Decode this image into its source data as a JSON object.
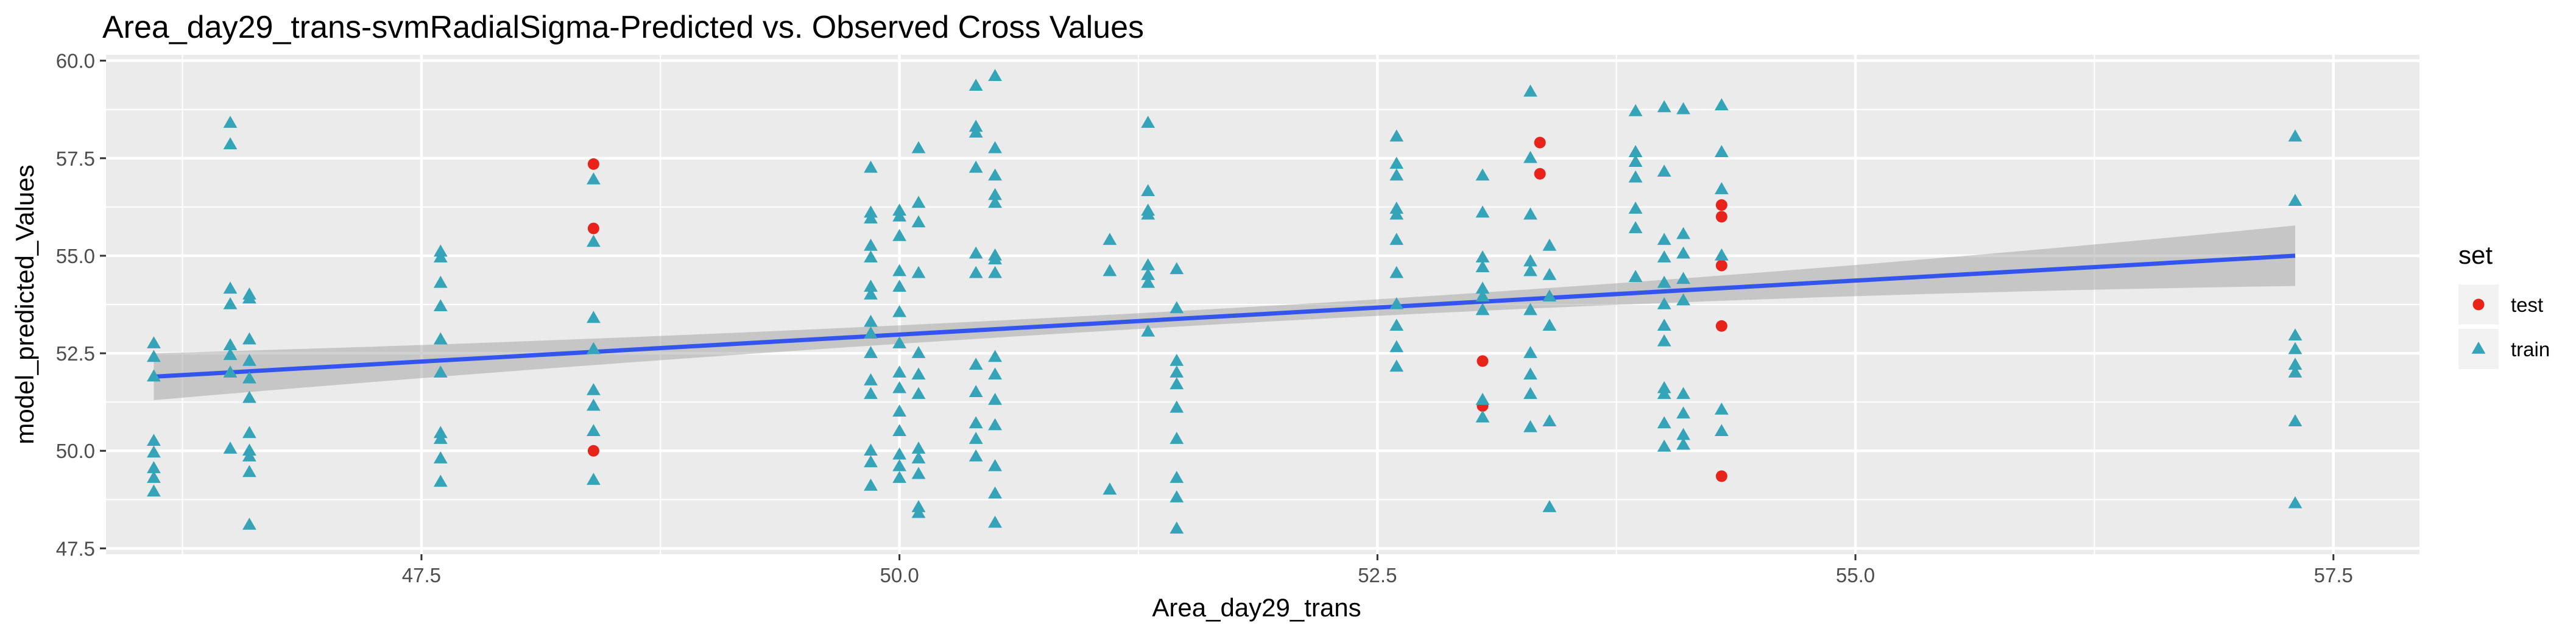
{
  "chart_data": {
    "type": "scatter",
    "title": "Area_day29_trans-svmRadialSigma-Predicted vs. Observed Cross Values",
    "xlabel": "Area_day29_trans",
    "ylabel": "model_predicted_Values",
    "xlim": [
      45.85,
      57.95
    ],
    "ylim": [
      47.35,
      60.15
    ],
    "x_ticks": [
      47.5,
      50.0,
      52.5,
      55.0,
      57.5
    ],
    "x_tick_labels": [
      "47.5",
      "50.0",
      "52.5",
      "55.0",
      "57.5"
    ],
    "y_ticks": [
      47.5,
      50.0,
      52.5,
      55.0,
      57.5,
      60.0
    ],
    "y_tick_labels": [
      "47.5",
      "50.0",
      "52.5",
      "55.0",
      "57.5",
      "60.0"
    ],
    "grid": true,
    "legend": {
      "title": "set",
      "placement": "right",
      "entries": [
        "test",
        "train"
      ]
    },
    "colors": {
      "panel": "#ebebeb",
      "grid": "#ffffff",
      "test": "#f8766d",
      "test_dot": "#e8241a",
      "train": "#35a3b8",
      "fit_line": "#3355ee",
      "ribbon": "#999999"
    },
    "fit": {
      "x": [
        46.1,
        57.3
      ],
      "y": [
        51.9,
        55.0
      ],
      "ci_upper": [
        52.45,
        55.8
      ],
      "ci_lower": [
        51.25,
        54.25
      ]
    },
    "series": [
      {
        "name": "test",
        "shape": "circle",
        "points": [
          [
            48.4,
            57.35
          ],
          [
            48.4,
            55.7
          ],
          [
            48.4,
            50.0
          ],
          [
            53.05,
            52.3
          ],
          [
            53.05,
            51.15
          ],
          [
            53.35,
            57.9
          ],
          [
            53.35,
            57.1
          ],
          [
            54.3,
            56.3
          ],
          [
            54.3,
            56.0
          ],
          [
            54.3,
            54.75
          ],
          [
            54.3,
            53.2
          ],
          [
            54.3,
            49.35
          ]
        ]
      },
      {
        "name": "train",
        "shape": "triangle",
        "points": [
          [
            46.1,
            52.75
          ],
          [
            46.1,
            52.4
          ],
          [
            46.1,
            51.9
          ],
          [
            46.1,
            50.25
          ],
          [
            46.1,
            49.95
          ],
          [
            46.1,
            49.55
          ],
          [
            46.1,
            49.3
          ],
          [
            46.1,
            48.95
          ],
          [
            46.5,
            58.4
          ],
          [
            46.5,
            57.85
          ],
          [
            46.5,
            54.15
          ],
          [
            46.5,
            53.75
          ],
          [
            46.5,
            52.7
          ],
          [
            46.5,
            52.45
          ],
          [
            46.5,
            52.0
          ],
          [
            46.5,
            50.05
          ],
          [
            46.6,
            54.0
          ],
          [
            46.6,
            53.9
          ],
          [
            46.6,
            52.85
          ],
          [
            46.6,
            52.3
          ],
          [
            46.6,
            51.85
          ],
          [
            46.6,
            51.35
          ],
          [
            46.6,
            50.45
          ],
          [
            46.6,
            50.0
          ],
          [
            46.6,
            49.85
          ],
          [
            46.6,
            49.45
          ],
          [
            46.6,
            48.1
          ],
          [
            47.6,
            55.1
          ],
          [
            47.6,
            54.95
          ],
          [
            47.6,
            54.3
          ],
          [
            47.6,
            53.7
          ],
          [
            47.6,
            52.85
          ],
          [
            47.6,
            52.0
          ],
          [
            47.6,
            50.45
          ],
          [
            47.6,
            50.3
          ],
          [
            47.6,
            49.8
          ],
          [
            47.6,
            49.2
          ],
          [
            48.4,
            56.95
          ],
          [
            48.4,
            55.35
          ],
          [
            48.4,
            53.4
          ],
          [
            48.4,
            52.6
          ],
          [
            48.4,
            51.55
          ],
          [
            48.4,
            51.15
          ],
          [
            48.4,
            50.5
          ],
          [
            48.4,
            49.25
          ],
          [
            49.85,
            57.25
          ],
          [
            49.85,
            56.1
          ],
          [
            49.85,
            55.95
          ],
          [
            49.85,
            55.25
          ],
          [
            49.85,
            54.95
          ],
          [
            49.85,
            54.2
          ],
          [
            49.85,
            54.0
          ],
          [
            49.85,
            53.3
          ],
          [
            49.85,
            53.0
          ],
          [
            49.85,
            52.5
          ],
          [
            49.85,
            51.8
          ],
          [
            49.85,
            51.45
          ],
          [
            49.85,
            50.0
          ],
          [
            49.85,
            49.7
          ],
          [
            49.85,
            49.1
          ],
          [
            50.0,
            56.15
          ],
          [
            50.0,
            56.0
          ],
          [
            50.0,
            55.5
          ],
          [
            50.0,
            54.6
          ],
          [
            50.0,
            54.2
          ],
          [
            50.0,
            53.55
          ],
          [
            50.0,
            52.75
          ],
          [
            50.0,
            52.0
          ],
          [
            50.0,
            51.6
          ],
          [
            50.0,
            51.0
          ],
          [
            50.0,
            50.5
          ],
          [
            50.0,
            49.9
          ],
          [
            50.0,
            49.6
          ],
          [
            50.0,
            49.3
          ],
          [
            50.1,
            57.75
          ],
          [
            50.1,
            56.35
          ],
          [
            50.1,
            55.85
          ],
          [
            50.1,
            54.55
          ],
          [
            50.1,
            52.5
          ],
          [
            50.1,
            51.95
          ],
          [
            50.1,
            51.45
          ],
          [
            50.1,
            50.05
          ],
          [
            50.1,
            49.8
          ],
          [
            50.1,
            49.4
          ],
          [
            50.1,
            48.55
          ],
          [
            50.1,
            48.4
          ],
          [
            50.4,
            59.35
          ],
          [
            50.4,
            58.3
          ],
          [
            50.4,
            58.15
          ],
          [
            50.4,
            57.25
          ],
          [
            50.4,
            55.05
          ],
          [
            50.4,
            54.55
          ],
          [
            50.4,
            52.2
          ],
          [
            50.4,
            51.5
          ],
          [
            50.4,
            50.7
          ],
          [
            50.4,
            50.3
          ],
          [
            50.4,
            49.85
          ],
          [
            50.5,
            59.6
          ],
          [
            50.5,
            57.75
          ],
          [
            50.5,
            57.05
          ],
          [
            50.5,
            56.55
          ],
          [
            50.5,
            56.35
          ],
          [
            50.5,
            55.0
          ],
          [
            50.5,
            54.9
          ],
          [
            50.5,
            54.55
          ],
          [
            50.5,
            52.4
          ],
          [
            50.5,
            51.95
          ],
          [
            50.5,
            51.3
          ],
          [
            50.5,
            50.65
          ],
          [
            50.5,
            49.6
          ],
          [
            50.5,
            48.9
          ],
          [
            50.5,
            48.15
          ],
          [
            51.1,
            55.4
          ],
          [
            51.1,
            54.6
          ],
          [
            51.1,
            49.0
          ],
          [
            51.3,
            58.4
          ],
          [
            51.3,
            56.65
          ],
          [
            51.3,
            56.15
          ],
          [
            51.3,
            56.05
          ],
          [
            51.3,
            54.75
          ],
          [
            51.3,
            54.5
          ],
          [
            51.3,
            54.3
          ],
          [
            51.3,
            53.05
          ],
          [
            51.45,
            54.65
          ],
          [
            51.45,
            53.65
          ],
          [
            51.45,
            52.3
          ],
          [
            51.45,
            52.0
          ],
          [
            51.45,
            51.7
          ],
          [
            51.45,
            51.1
          ],
          [
            51.45,
            50.3
          ],
          [
            51.45,
            49.3
          ],
          [
            51.45,
            48.8
          ],
          [
            51.45,
            48.0
          ],
          [
            52.6,
            58.05
          ],
          [
            52.6,
            57.35
          ],
          [
            52.6,
            57.05
          ],
          [
            52.6,
            56.2
          ],
          [
            52.6,
            56.05
          ],
          [
            52.6,
            55.4
          ],
          [
            52.6,
            54.55
          ],
          [
            52.6,
            53.75
          ],
          [
            52.6,
            53.2
          ],
          [
            52.6,
            52.65
          ],
          [
            52.6,
            52.15
          ],
          [
            53.05,
            57.05
          ],
          [
            53.05,
            56.1
          ],
          [
            53.05,
            54.95
          ],
          [
            53.05,
            54.7
          ],
          [
            53.05,
            54.15
          ],
          [
            53.05,
            53.95
          ],
          [
            53.05,
            53.6
          ],
          [
            53.05,
            51.3
          ],
          [
            53.05,
            50.85
          ],
          [
            53.3,
            59.2
          ],
          [
            53.3,
            57.5
          ],
          [
            53.3,
            56.05
          ],
          [
            53.3,
            54.85
          ],
          [
            53.3,
            54.6
          ],
          [
            53.3,
            53.6
          ],
          [
            53.3,
            52.5
          ],
          [
            53.3,
            51.95
          ],
          [
            53.3,
            51.45
          ],
          [
            53.3,
            50.6
          ],
          [
            53.4,
            55.25
          ],
          [
            53.4,
            54.5
          ],
          [
            53.4,
            53.95
          ],
          [
            53.4,
            53.2
          ],
          [
            53.4,
            50.75
          ],
          [
            53.4,
            48.55
          ],
          [
            53.85,
            58.7
          ],
          [
            53.85,
            57.65
          ],
          [
            53.85,
            57.4
          ],
          [
            53.85,
            57.0
          ],
          [
            53.85,
            56.2
          ],
          [
            53.85,
            55.7
          ],
          [
            53.85,
            54.45
          ],
          [
            54.0,
            58.8
          ],
          [
            54.0,
            57.15
          ],
          [
            54.0,
            55.4
          ],
          [
            54.0,
            54.95
          ],
          [
            54.0,
            54.3
          ],
          [
            54.0,
            53.75
          ],
          [
            54.0,
            53.2
          ],
          [
            54.0,
            52.8
          ],
          [
            54.0,
            51.6
          ],
          [
            54.0,
            51.45
          ],
          [
            54.0,
            50.7
          ],
          [
            54.0,
            50.1
          ],
          [
            54.1,
            58.75
          ],
          [
            54.1,
            55.55
          ],
          [
            54.1,
            55.05
          ],
          [
            54.1,
            54.4
          ],
          [
            54.1,
            53.85
          ],
          [
            54.1,
            51.45
          ],
          [
            54.1,
            50.95
          ],
          [
            54.1,
            50.4
          ],
          [
            54.1,
            50.15
          ],
          [
            54.3,
            58.85
          ],
          [
            54.3,
            57.65
          ],
          [
            54.3,
            56.7
          ],
          [
            54.3,
            55.0
          ],
          [
            54.3,
            51.05
          ],
          [
            54.3,
            50.5
          ],
          [
            57.3,
            58.05
          ],
          [
            57.3,
            56.4
          ],
          [
            57.3,
            52.95
          ],
          [
            57.3,
            52.6
          ],
          [
            57.3,
            52.2
          ],
          [
            57.3,
            52.0
          ],
          [
            57.3,
            50.75
          ],
          [
            57.3,
            48.65
          ]
        ]
      }
    ]
  }
}
